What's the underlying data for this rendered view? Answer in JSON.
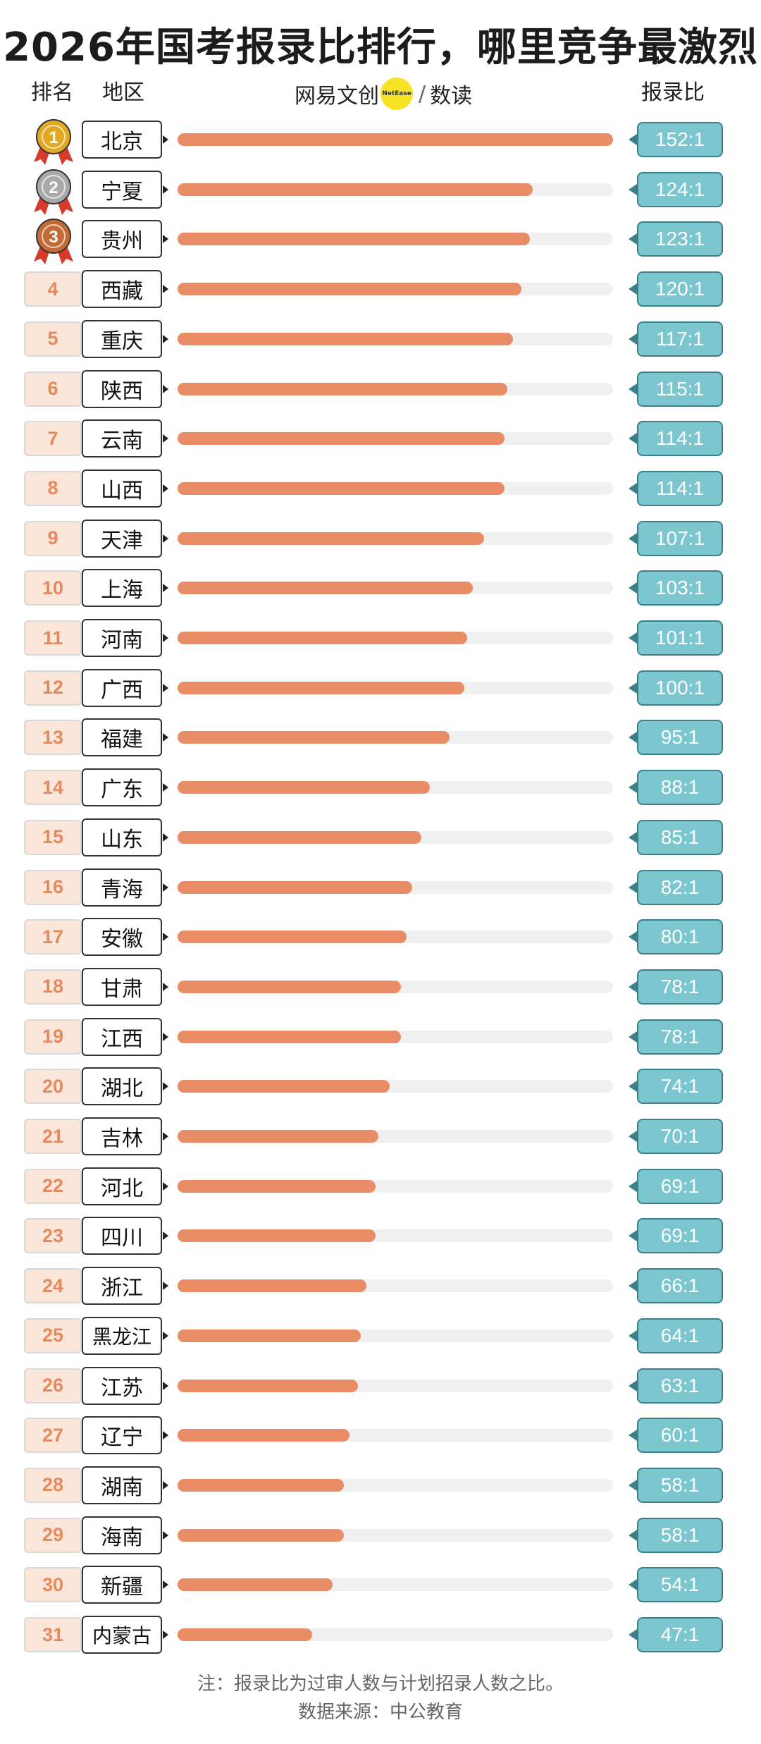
{
  "title": "2026年国考报录比排行，哪里竞争最激烈",
  "headers": {
    "rank": "排名",
    "region": "地区",
    "ratio": "报录比"
  },
  "brand": {
    "left": "网易文创",
    "badge": "NetEase",
    "right": "数读"
  },
  "note": "注：报录比为过审人数与计划招录人数之比。",
  "source": "数据来源：中公教育",
  "colors": {
    "bar": "#e88d66",
    "track": "#f0f0f0",
    "ratio_fill": "#7cc6d0",
    "rank_fill": "#fbe7d9",
    "gold": "#e2a823",
    "silver": "#a9a9a9",
    "bronze": "#c26b36",
    "ribbon": "#d63a2a"
  },
  "chart_data": {
    "type": "bar",
    "orientation": "horizontal",
    "title": "2026年国考报录比排行，哪里竞争最激烈",
    "xlim": [
      0,
      152
    ],
    "categories": [
      "北京",
      "宁夏",
      "贵州",
      "西藏",
      "重庆",
      "陕西",
      "云南",
      "山西",
      "天津",
      "上海",
      "河南",
      "广西",
      "福建",
      "广东",
      "山东",
      "青海",
      "安徽",
      "甘肃",
      "江西",
      "湖北",
      "吉林",
      "河北",
      "四川",
      "浙江",
      "黑龙江",
      "江苏",
      "辽宁",
      "湖南",
      "海南",
      "新疆",
      "内蒙古"
    ],
    "ranks": [
      "1",
      "2",
      "3",
      "4",
      "5",
      "6",
      "7",
      "8",
      "9",
      "10",
      "11",
      "12",
      "13",
      "14",
      "15",
      "16",
      "17",
      "18",
      "19",
      "20",
      "21",
      "22",
      "23",
      "24",
      "25",
      "26",
      "27",
      "28",
      "29",
      "30",
      "31"
    ],
    "values": [
      152,
      124,
      123,
      120,
      117,
      115,
      114,
      114,
      107,
      103,
      101,
      100,
      95,
      88,
      85,
      82,
      80,
      78,
      78,
      74,
      70,
      69,
      69,
      66,
      64,
      63,
      60,
      58,
      58,
      54,
      47
    ],
    "labels": [
      "152:1",
      "124:1",
      "123:1",
      "120:1",
      "117:1",
      "115:1",
      "114:1",
      "114:1",
      "107:1",
      "103:1",
      "101:1",
      "100:1",
      "95:1",
      "88:1",
      "85:1",
      "82:1",
      "80:1",
      "78:1",
      "78:1",
      "74:1",
      "70:1",
      "69:1",
      "69:1",
      "66:1",
      "64:1",
      "63:1",
      "60:1",
      "58:1",
      "58:1",
      "54:1",
      "47:1"
    ],
    "medals": [
      "gold",
      "silver",
      "bronze"
    ]
  }
}
